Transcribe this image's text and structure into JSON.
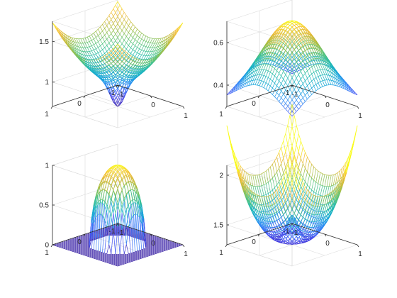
{
  "figure": {
    "background": "#ffffff",
    "colormap": [
      "#3e26a8",
      "#4748f0",
      "#2e86f8",
      "#14a7d8",
      "#23bcae",
      "#61c471",
      "#b7bc3a",
      "#f5bb3a",
      "#f9fb15"
    ]
  },
  "chart_data": [
    {
      "type": "mesh",
      "surface": "sqrt(1 + x^2 + y^2) - 0.3*exp(-20*(x^2 + y^2))",
      "x_range": [
        -1,
        1
      ],
      "y_range": [
        -1,
        1
      ],
      "zlim": [
        0.7,
        1.75
      ],
      "x_ticks": [
        "-1",
        "0",
        "1"
      ],
      "y_ticks": [
        "-1",
        "0",
        "1"
      ],
      "z_ticks": [
        {
          "value": 1,
          "label": "1"
        },
        {
          "value": 1.5,
          "label": "1.5"
        }
      ],
      "grid": true
    },
    {
      "type": "mesh",
      "surface": "0.3 + 0.4*exp(-(x^2 + y^2))",
      "x_range": [
        -1,
        1
      ],
      "y_range": [
        -1,
        1
      ],
      "zlim": [
        0.3,
        0.7
      ],
      "x_ticks": [
        "-1",
        "0",
        "1"
      ],
      "y_ticks": [
        "-1",
        "0",
        "1"
      ],
      "z_ticks": [
        {
          "value": 0.4,
          "label": "0.4"
        },
        {
          "value": 0.6,
          "label": "0.6"
        }
      ],
      "grid": true
    },
    {
      "type": "mesh",
      "surface": "sqrt(max(0, 0.36 - x^2 - y^2)) / 0.6 (hemisphere, radius 0.6)",
      "x_range": [
        -1,
        1
      ],
      "y_range": [
        -1,
        1
      ],
      "zlim": [
        0,
        1
      ],
      "x_ticks": [
        "-1",
        "0",
        "1"
      ],
      "y_ticks": [
        "-1",
        "0",
        "1"
      ],
      "z_ticks": [
        {
          "value": 0,
          "label": "0"
        },
        {
          "value": 0.5,
          "label": "0.5"
        },
        {
          "value": 1,
          "label": "1"
        }
      ],
      "grid": true
    },
    {
      "type": "mesh",
      "surface": "1.3 + 0.35*(x^2 + y^2) + 0.25*(x^4 + y^4) + 0.3*exp(-25*(x^2 + y^2))",
      "x_range": [
        -1,
        1
      ],
      "y_range": [
        -1,
        1
      ],
      "zlim": [
        1.3,
        2.1
      ],
      "x_ticks": [
        "-1",
        "0",
        "1"
      ],
      "y_ticks": [
        "-1",
        "0",
        "1"
      ],
      "z_ticks": [
        {
          "value": 1.5,
          "label": "1.5"
        },
        {
          "value": 2,
          "label": "2"
        }
      ],
      "grid": true
    }
  ]
}
